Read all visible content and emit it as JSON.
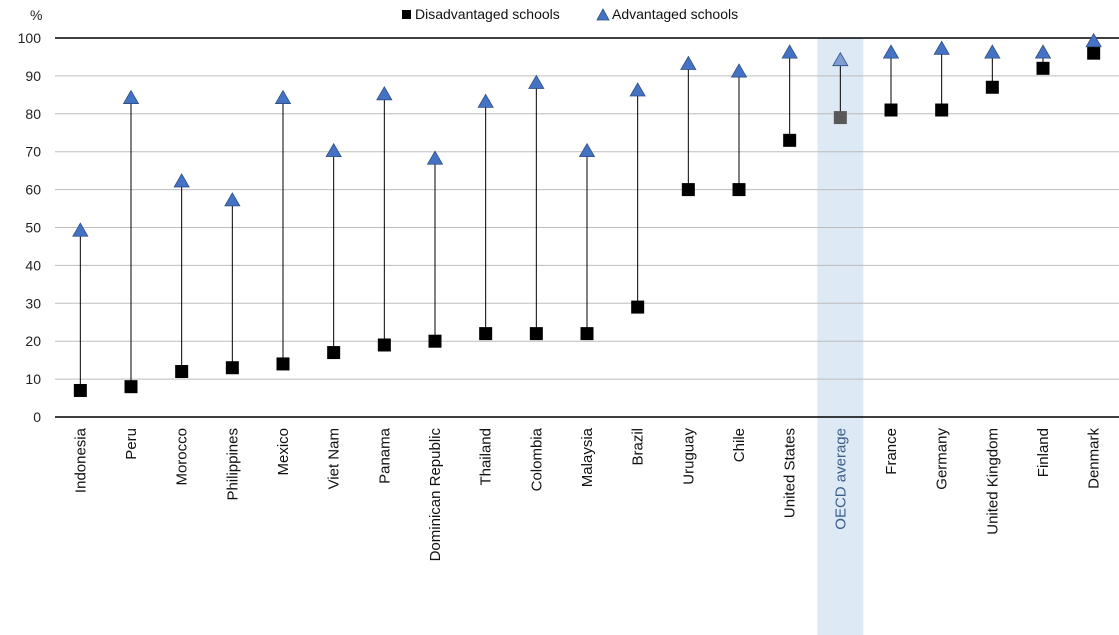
{
  "chart_data": {
    "type": "dot",
    "y_unit_label": "%",
    "ylim": [
      0,
      100
    ],
    "yticks": [
      0,
      10,
      20,
      30,
      40,
      50,
      60,
      70,
      80,
      90,
      100
    ],
    "grid": true,
    "legend_position": "top-center",
    "categories": [
      "Indonesia",
      "Peru",
      "Morocco",
      "Philippines",
      "Mexico",
      "Viet Nam",
      "Panama",
      "Dominican Republic",
      "Thailand",
      "Colombia",
      "Malaysia",
      "Brazil",
      "Uruguay",
      "Chile",
      "United States",
      "OECD average",
      "France",
      "Germany",
      "United Kingdom",
      "Finland",
      "Denmark"
    ],
    "highlight_category": "OECD average",
    "series": [
      {
        "name": "Disadvantaged schools",
        "marker": "square",
        "color": "#000000",
        "values": [
          7,
          8,
          12,
          13,
          14,
          17,
          19,
          20,
          22,
          22,
          22,
          29,
          60,
          60,
          73,
          79,
          81,
          81,
          87,
          92,
          96
        ]
      },
      {
        "name": "Advantaged schools",
        "marker": "triangle",
        "color": "#4472C4",
        "values": [
          49,
          84,
          62,
          57,
          84,
          70,
          85,
          68,
          83,
          88,
          70,
          86,
          93,
          91,
          96,
          94,
          96,
          97,
          96,
          96,
          99
        ]
      }
    ],
    "highlight_colors": {
      "band": "#dde9f5",
      "square": "#595959",
      "triangle": "#7f9fd4",
      "label": "#3a5f8a"
    }
  }
}
